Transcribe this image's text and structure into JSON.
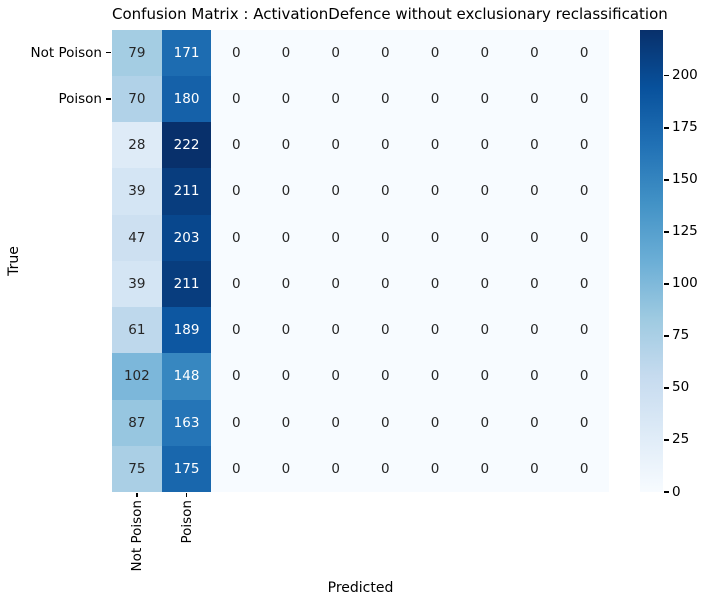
{
  "title": "Confusion Matrix : ActivationDefence without exclusionary reclassification",
  "chart_data": {
    "type": "heatmap",
    "title": "Confusion Matrix : ActivationDefence without exclusionary reclassification",
    "xlabel": "Predicted",
    "ylabel": "True",
    "rows": 10,
    "cols": 10,
    "x_tick_labels": [
      "Not Poison",
      "Poison"
    ],
    "y_tick_labels": [
      "Not Poison",
      "Poison"
    ],
    "matrix": [
      [
        79,
        171,
        0,
        0,
        0,
        0,
        0,
        0,
        0,
        0
      ],
      [
        70,
        180,
        0,
        0,
        0,
        0,
        0,
        0,
        0,
        0
      ],
      [
        28,
        222,
        0,
        0,
        0,
        0,
        0,
        0,
        0,
        0
      ],
      [
        39,
        211,
        0,
        0,
        0,
        0,
        0,
        0,
        0,
        0
      ],
      [
        47,
        203,
        0,
        0,
        0,
        0,
        0,
        0,
        0,
        0
      ],
      [
        39,
        211,
        0,
        0,
        0,
        0,
        0,
        0,
        0,
        0
      ],
      [
        61,
        189,
        0,
        0,
        0,
        0,
        0,
        0,
        0,
        0
      ],
      [
        102,
        148,
        0,
        0,
        0,
        0,
        0,
        0,
        0,
        0
      ],
      [
        87,
        163,
        0,
        0,
        0,
        0,
        0,
        0,
        0,
        0
      ],
      [
        75,
        175,
        0,
        0,
        0,
        0,
        0,
        0,
        0,
        0
      ]
    ],
    "vmin": 0,
    "vmax": 222,
    "colormap": {
      "name": "Blues",
      "anchors": [
        "#f7fbff",
        "#deebf7",
        "#c6dbef",
        "#9ecae1",
        "#6baed6",
        "#4292c6",
        "#2171b5",
        "#08519c",
        "#08306b"
      ]
    },
    "colorbar": {
      "position": "right",
      "ticks": [
        0,
        25,
        50,
        75,
        100,
        125,
        150,
        175,
        200
      ]
    },
    "annotation_colors": {
      "dark": "#262626",
      "light": "#ffffff"
    },
    "grid": false,
    "legend_position": "none"
  }
}
